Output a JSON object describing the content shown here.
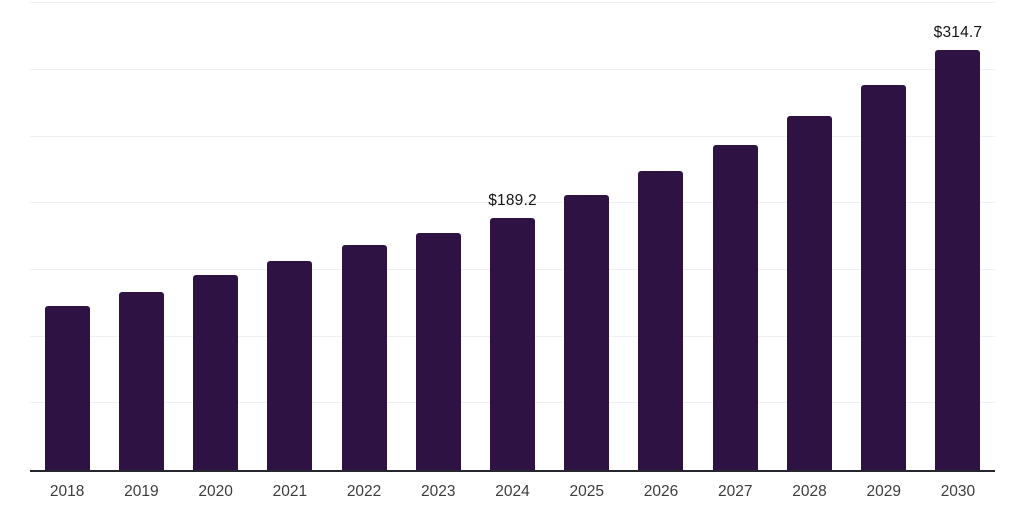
{
  "chart_data": {
    "type": "bar",
    "title": "",
    "xlabel": "",
    "ylabel": "",
    "categories": [
      "2018",
      "2019",
      "2020",
      "2021",
      "2022",
      "2023",
      "2024",
      "2025",
      "2026",
      "2027",
      "2028",
      "2029",
      "2030"
    ],
    "values": [
      122.9,
      133.7,
      146.4,
      157.1,
      169.1,
      177.9,
      189.2,
      206.0,
      224.2,
      244.0,
      265.6,
      289.1,
      314.7
    ],
    "data_labels": {
      "2024": "$189.2",
      "2030": "$314.7"
    },
    "ylim": [
      0,
      351
    ],
    "grid_step": 50,
    "grid": true,
    "legend": false,
    "y_tick_labels_visible": false,
    "colors": {
      "bar": "#2f1244",
      "gridline": "#f0f0f3",
      "axis_line": "#26262e",
      "tick_text": "#3d3d3d",
      "data_label_text": "#141414",
      "background": "#ffffff"
    }
  }
}
